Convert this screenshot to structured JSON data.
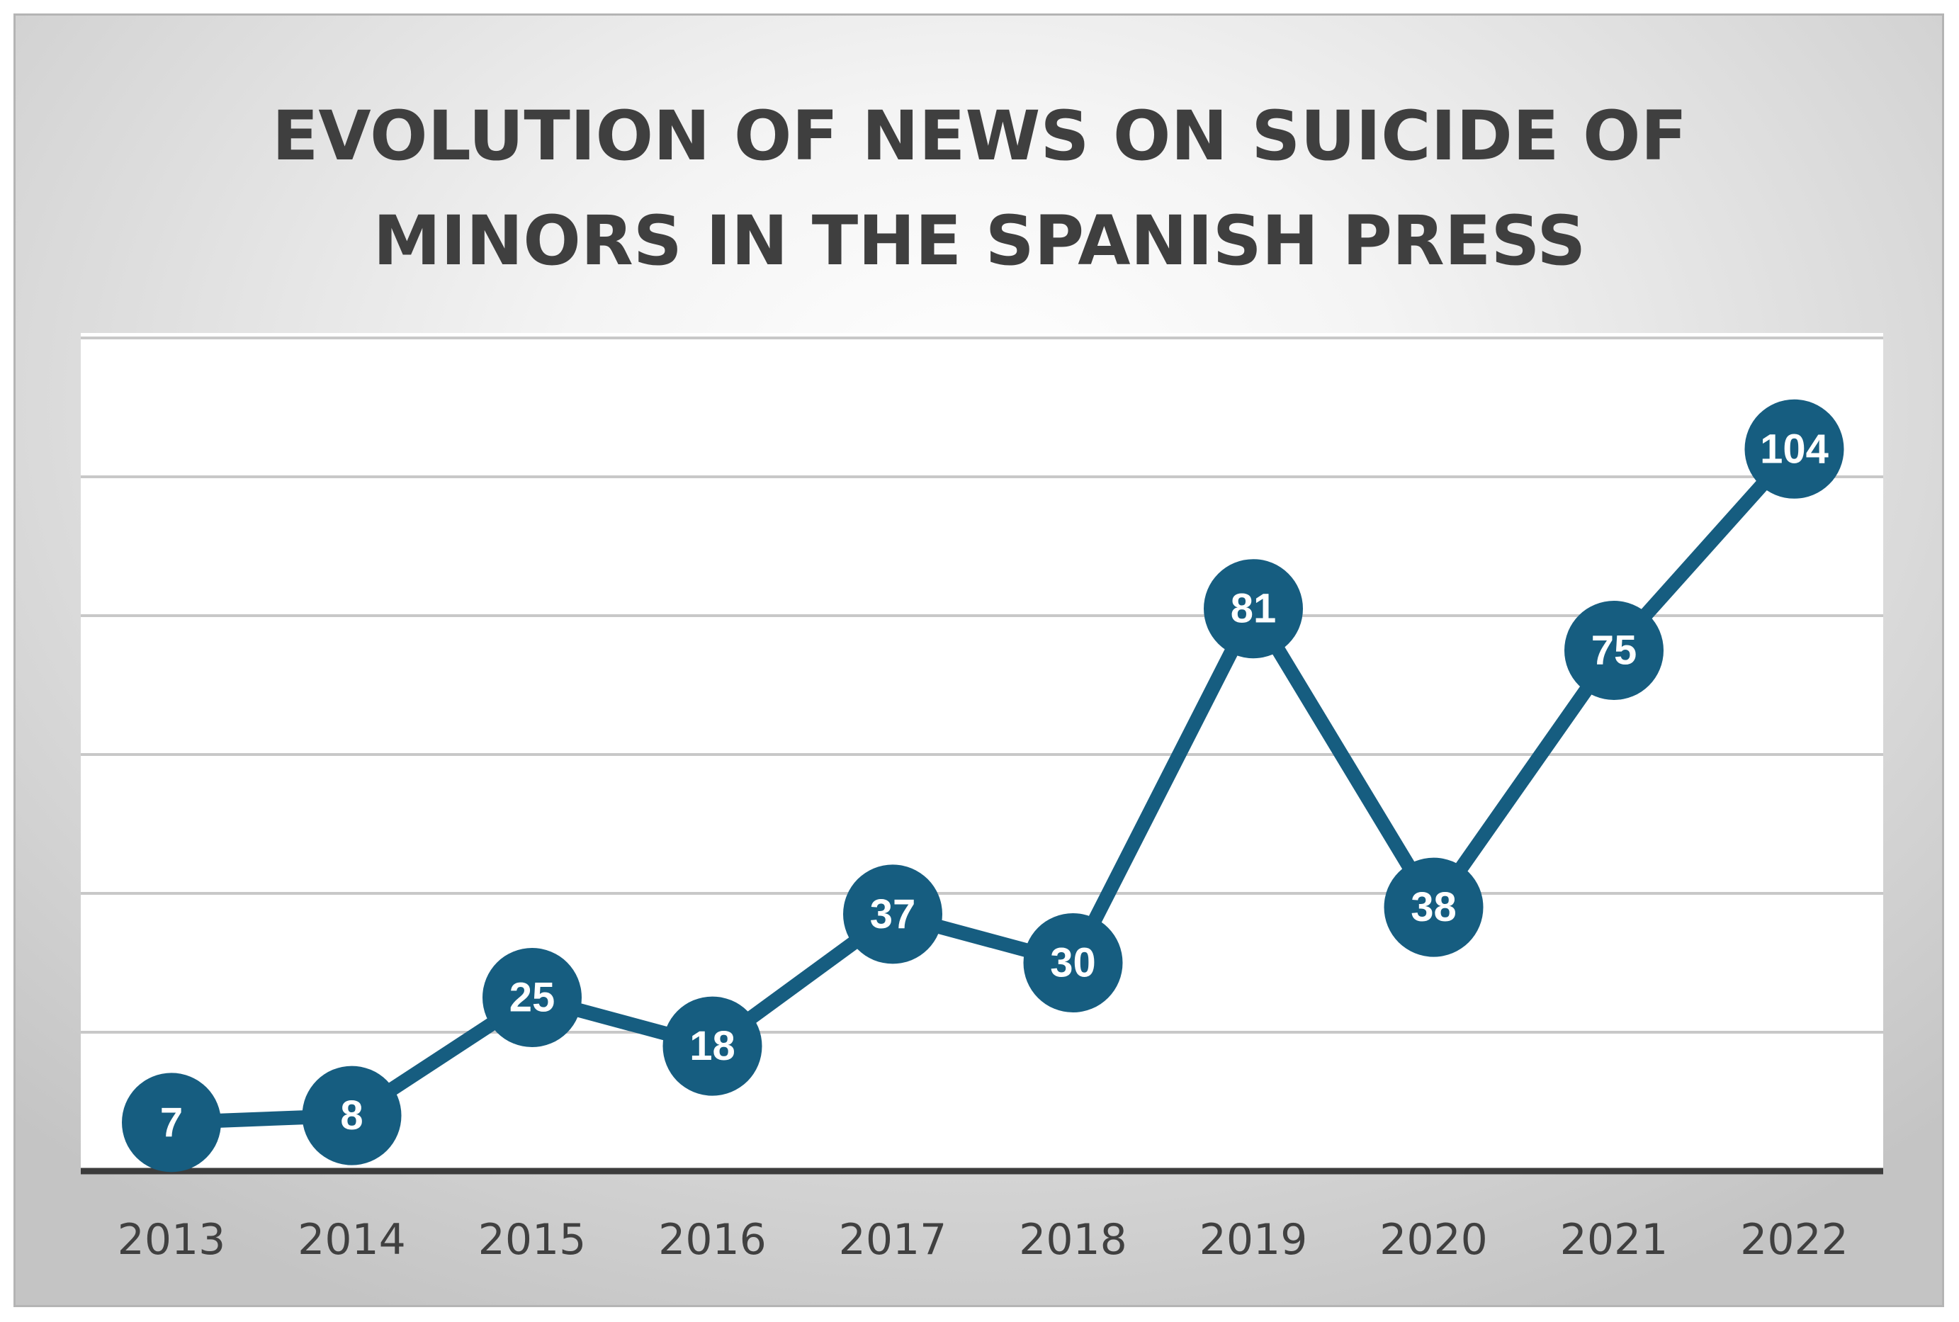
{
  "chart_data": {
    "type": "line",
    "title": "EVOLUTION OF NEWS ON SUICIDE OF MINORS IN THE SPANISH PRESS",
    "title_lines": [
      "EVOLUTION OF NEWS ON SUICIDE OF",
      "MINORS IN THE SPANISH PRESS"
    ],
    "xlabel": "",
    "ylabel": "",
    "categories": [
      "2013",
      "2014",
      "2015",
      "2016",
      "2017",
      "2018",
      "2019",
      "2020",
      "2021",
      "2022"
    ],
    "series": [
      {
        "name": "News",
        "values": [
          7,
          8,
          25,
          18,
          37,
          30,
          81,
          38,
          75,
          104
        ],
        "labels": [
          "7",
          "8",
          "25",
          "18",
          "37",
          "30",
          "81",
          "38",
          "75",
          "104"
        ]
      }
    ],
    "ylim": [
      0,
      120
    ],
    "gridlines_at": [
      20,
      40,
      60,
      80,
      100,
      120
    ],
    "grid": true,
    "legend": "none",
    "colors": {
      "series": "#165d80",
      "label_text": "#ffffff",
      "axis": "#3c3c3c",
      "grid": "#c8c8c8",
      "title": "#3f3f3f"
    }
  }
}
